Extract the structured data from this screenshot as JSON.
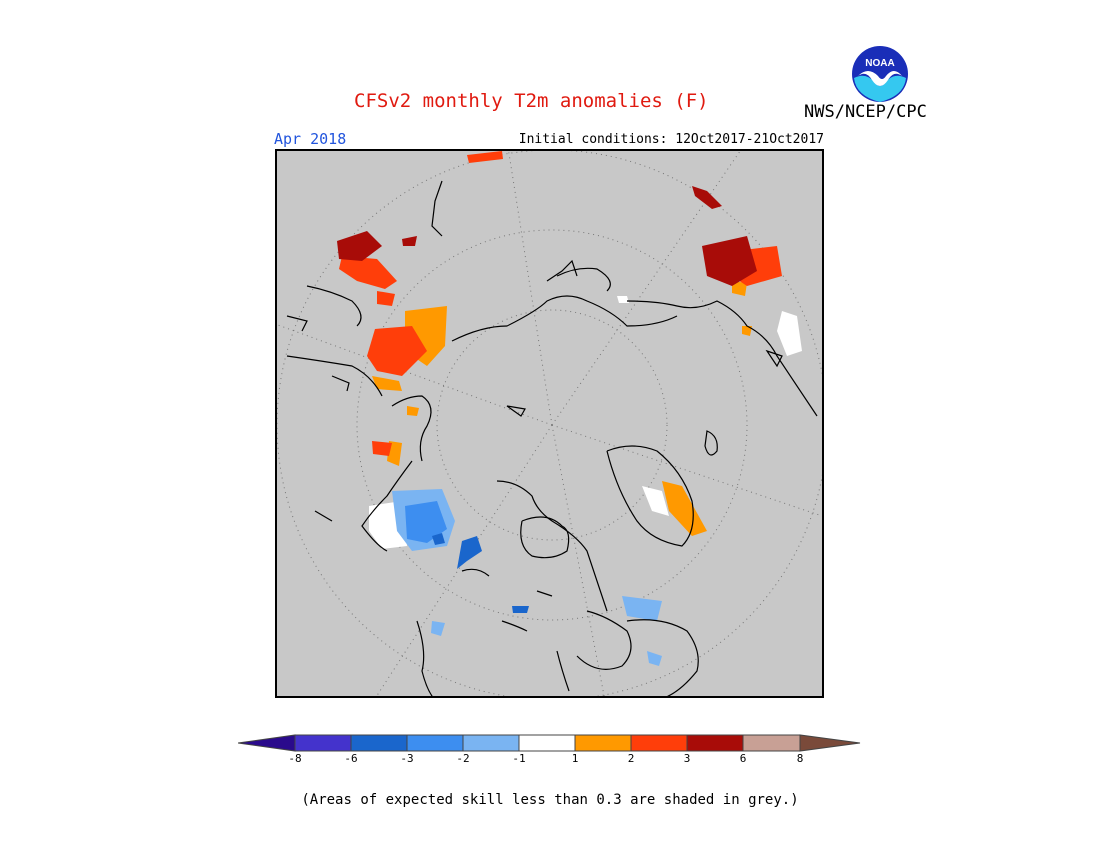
{
  "header": {
    "title": "CFSv2 monthly T2m anomalies (F)",
    "org": "NWS/NCEP/CPC",
    "logo_text": "NOAA",
    "month": "Apr 2018",
    "initial_conditions": "Initial conditions: 12Oct2017-21Oct2017"
  },
  "map": {
    "projection": "north-polar-stereographic",
    "background_color": "#c8c8c8",
    "coastline_color": "#000000"
  },
  "legend": {
    "tick_labels": [
      "-8",
      "-6",
      "-3",
      "-2",
      "-1",
      "1",
      "2",
      "3",
      "6",
      "8"
    ],
    "bins": [
      {
        "color": "#2a0a8c"
      },
      {
        "color": "#4433cc"
      },
      {
        "color": "#1a66cc"
      },
      {
        "color": "#3d8ef0"
      },
      {
        "color": "#7ab4f2"
      },
      {
        "color": "#ffffff"
      },
      {
        "color": "#ff9900"
      },
      {
        "color": "#ff3e0a"
      },
      {
        "color": "#a80c08"
      },
      {
        "color": "#c8a095"
      },
      {
        "color": "#7a4a3a"
      }
    ]
  },
  "note": "(Areas of expected skill less than 0.3 are shaded in grey.)"
}
